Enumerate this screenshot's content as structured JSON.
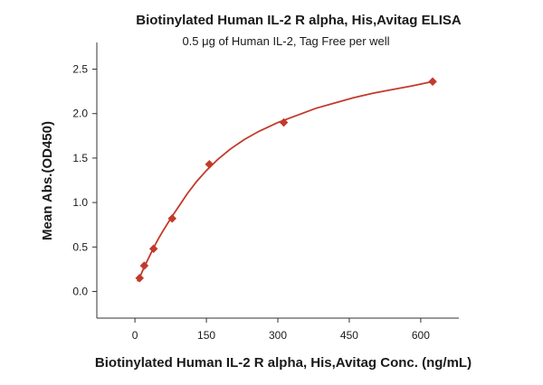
{
  "colors": {
    "series": "#c23a2b",
    "axis": "#333333",
    "text": "#1a1a1a"
  },
  "chart_data": {
    "type": "scatter",
    "title": "Biotinylated Human IL-2 R alpha, His,Avitag ELISA",
    "subtitle": "0.5 μg of Human IL-2, Tag Free per well",
    "xlabel": "Biotinylated Human IL-2 R alpha, His,Avitag Conc. (ng/mL)",
    "ylabel": "Mean Abs.(OD450)",
    "xlim": [
      -80,
      680
    ],
    "ylim": [
      -0.3,
      2.8
    ],
    "xticks": [
      0,
      150,
      300,
      450,
      600
    ],
    "yticks": [
      0.0,
      0.5,
      1.0,
      1.5,
      2.0,
      2.5
    ],
    "xtick_labels": [
      "0",
      "150",
      "300",
      "450",
      "600"
    ],
    "ytick_labels": [
      "0.0",
      "0.5",
      "1.0",
      "1.5",
      "2.0",
      "2.5"
    ],
    "grid": false,
    "legend": "none",
    "series": [
      {
        "marker": "diamond",
        "x": [
          9.77,
          19.53,
          39.06,
          78.13,
          156.25,
          312.5,
          625
        ],
        "y": [
          0.15,
          0.29,
          0.48,
          0.82,
          1.43,
          1.9,
          2.36
        ]
      }
    ],
    "fit_curve": {
      "type": "four-parameter-logistic",
      "x": [
        6,
        10,
        15,
        20,
        30,
        40,
        50,
        60,
        75,
        90,
        110,
        130,
        150,
        175,
        200,
        230,
        260,
        300,
        340,
        380,
        420,
        460,
        500,
        540,
        580,
        625
      ],
      "y": [
        0.12,
        0.16,
        0.22,
        0.28,
        0.39,
        0.5,
        0.6,
        0.69,
        0.82,
        0.94,
        1.1,
        1.24,
        1.36,
        1.49,
        1.6,
        1.71,
        1.8,
        1.9,
        1.98,
        2.06,
        2.12,
        2.18,
        2.23,
        2.27,
        2.31,
        2.36
      ]
    }
  }
}
